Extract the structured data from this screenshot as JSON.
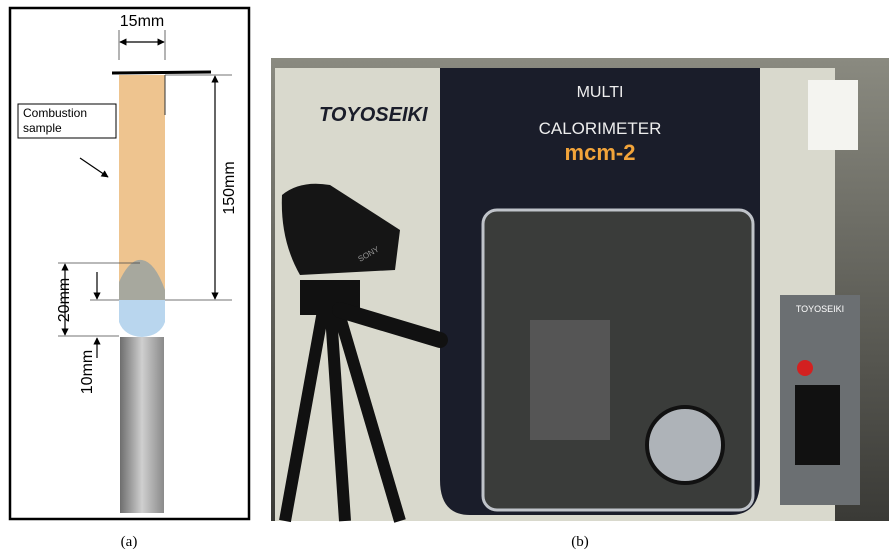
{
  "panel_a": {
    "width_label": "15mm",
    "length_label": "150mm",
    "sample_label": "Combustion sample",
    "flame_label": "20mm",
    "gap_label": "10mm",
    "caption": "(a)"
  },
  "panel_b": {
    "brand": "TOYOSEIKI",
    "model_line1": "MULTI",
    "model_line2": "CALORIMETER",
    "model_code": "mcm-2",
    "side_brand": "TOYOSEIKI",
    "camera_brand": "SONY",
    "caption": "(b)"
  }
}
